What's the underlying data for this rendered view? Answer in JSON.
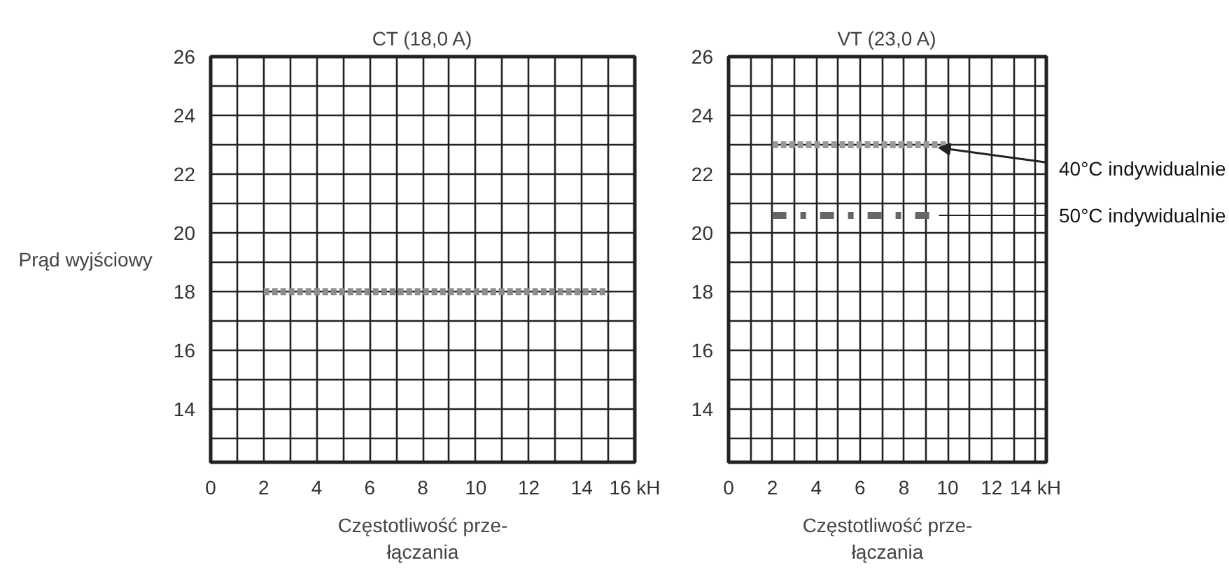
{
  "chart_data": [
    {
      "type": "line",
      "title": "CT (18,0 A)",
      "xlabel": "Częstotliwość prze-\nłączania",
      "ylabel": "Prąd wyjściowy",
      "xlim": [
        0,
        16
      ],
      "ylim": [
        12.2,
        26
      ],
      "xticks": [
        0,
        {
          "value": 1,
          "label": null
        },
        2,
        {
          "value": 3,
          "label": null
        },
        4,
        {
          "value": 5,
          "label": null
        },
        6,
        {
          "value": 7,
          "label": null
        },
        8,
        {
          "value": 9,
          "label": null
        },
        10,
        {
          "value": 11,
          "label": null
        },
        12,
        {
          "value": 13,
          "label": null
        },
        14,
        {
          "value": 15,
          "label": null
        },
        {
          "value": 16,
          "label": "16 kH"
        }
      ],
      "yticks": [
        {
          "value": 13,
          "label": null
        },
        14,
        {
          "value": 15,
          "label": null
        },
        16,
        {
          "value": 17,
          "label": null
        },
        18,
        {
          "value": 19,
          "label": null
        },
        20,
        {
          "value": 21,
          "label": null
        },
        22,
        {
          "value": 23,
          "label": null
        },
        24,
        {
          "value": 25,
          "label": null
        },
        26
      ],
      "grid": true,
      "series": [
        {
          "color": "#8c8c8c",
          "line_style": "dashed",
          "x": [
            2,
            15
          ],
          "values": [
            18,
            18
          ]
        }
      ]
    },
    {
      "type": "line",
      "title": "VT (23,0 A)",
      "xlabel": "Częstotliwość prze-\nłączania",
      "xlim": [
        0,
        14.5
      ],
      "ylim": [
        12.2,
        26
      ],
      "xticks": [
        0,
        {
          "value": 1,
          "label": null
        },
        2,
        {
          "value": 3,
          "label": null
        },
        4,
        {
          "value": 5,
          "label": null
        },
        6,
        {
          "value": 7,
          "label": null
        },
        8,
        {
          "value": 9,
          "label": null
        },
        10,
        {
          "value": 11,
          "label": null
        },
        12,
        {
          "value": 13,
          "label": null
        },
        {
          "value": 14,
          "label": "14 kH"
        }
      ],
      "yticks": [
        {
          "value": 13,
          "label": null
        },
        14,
        {
          "value": 15,
          "label": null
        },
        16,
        {
          "value": 17,
          "label": null
        },
        18,
        {
          "value": 19,
          "label": null
        },
        20,
        {
          "value": 21,
          "label": null
        },
        22,
        {
          "value": 23,
          "label": null
        },
        24,
        {
          "value": 25,
          "label": null
        },
        26
      ],
      "grid": true,
      "series": [
        {
          "name": "40°C indywidualnie",
          "color": "#999999",
          "line_style": "dashed",
          "x": [
            2,
            10
          ],
          "values": [
            23,
            23
          ]
        },
        {
          "name": "50°C indywidualnie",
          "color": "#666666",
          "line_style": "dashdot",
          "x": [
            2,
            9.5
          ],
          "values": [
            20.6,
            20.6
          ]
        }
      ]
    }
  ]
}
